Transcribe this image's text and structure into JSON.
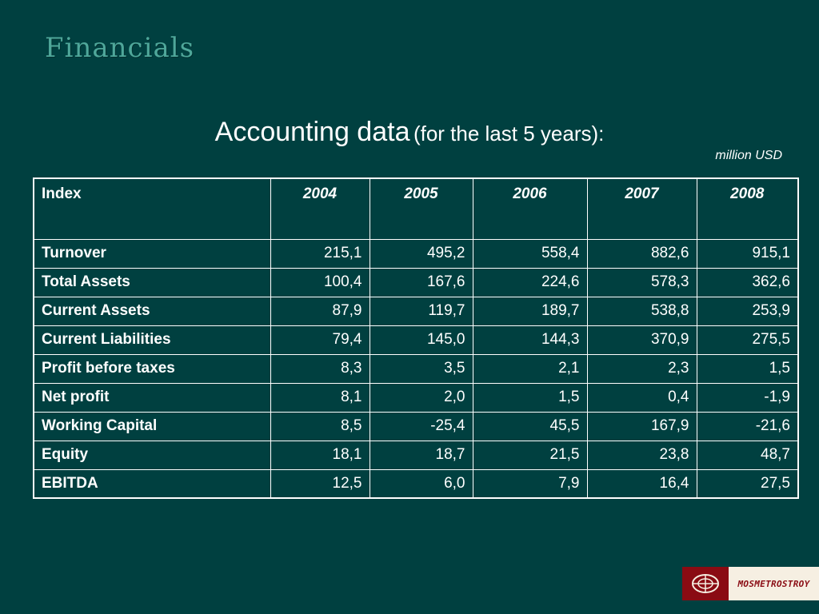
{
  "slide": {
    "title": "Financials",
    "subtitle_main": "Accounting data",
    "subtitle_paren": "(for the last 5 years):",
    "units": "million USD"
  },
  "table": {
    "header_index": "Index",
    "years": [
      "2004",
      "2005",
      "2006",
      "2007",
      "2008"
    ],
    "rows": [
      {
        "label": "Turnover",
        "values": [
          "215,1",
          "495,2",
          "558,4",
          "882,6",
          "915,1"
        ]
      },
      {
        "label": "Total Assets",
        "values": [
          "100,4",
          "167,6",
          "224,6",
          "578,3",
          "362,6"
        ]
      },
      {
        "label": "Current Assets",
        "values": [
          "87,9",
          "119,7",
          "189,7",
          "538,8",
          "253,9"
        ]
      },
      {
        "label": "Current Liabilities",
        "values": [
          "79,4",
          "145,0",
          "144,3",
          "370,9",
          "275,5"
        ]
      },
      {
        "label": "Profit before taxes",
        "values": [
          "8,3",
          "3,5",
          "2,1",
          "2,3",
          "1,5"
        ]
      },
      {
        "label": "Net profit",
        "values": [
          "8,1",
          "2,0",
          "1,5",
          "0,4",
          "-1,9"
        ]
      },
      {
        "label": "Working Capital",
        "values": [
          "8,5",
          "-25,4",
          "45,5",
          "167,9",
          "-21,6"
        ]
      },
      {
        "label": "Equity",
        "values": [
          "18,1",
          "18,7",
          "21,5",
          "23,8",
          "48,7"
        ]
      },
      {
        "label": "EBITDA",
        "values": [
          "12,5",
          "6,0",
          "7,9",
          "16,4",
          "27,5"
        ]
      }
    ]
  },
  "logo": {
    "text": "MOSMETROSTROY",
    "icon": "metro-emblem-icon"
  },
  "colors": {
    "background": "#004040",
    "title": "#4fa79a",
    "logo_red": "#8a0b13"
  }
}
